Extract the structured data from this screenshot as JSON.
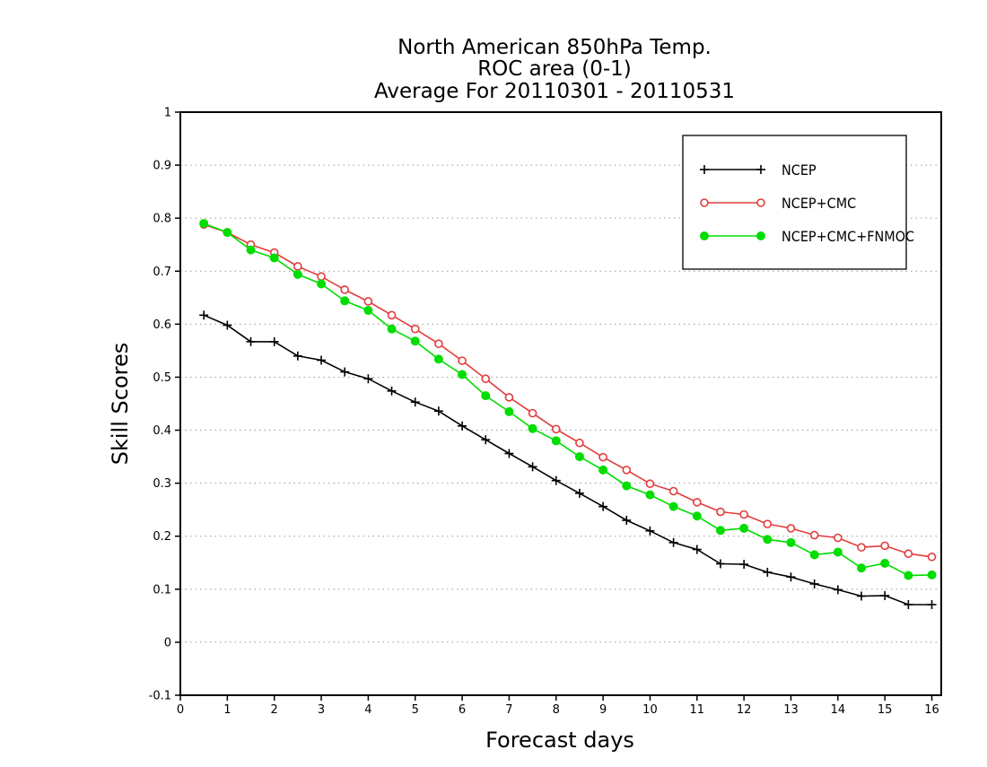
{
  "chart_data": {
    "type": "line",
    "title_lines": [
      "North American 850hPa Temp.",
      "ROC area (0-1)",
      "Average For 20110301 - 20110531"
    ],
    "xlabel": "Forecast days",
    "ylabel": "Skill Scores",
    "xlim": [
      0,
      16.2
    ],
    "ylim": [
      -0.1,
      1
    ],
    "x_ticks": [
      0,
      1,
      2,
      3,
      4,
      5,
      6,
      7,
      8,
      9,
      10,
      11,
      12,
      13,
      14,
      15,
      16
    ],
    "y_ticks": [
      -0.1,
      0,
      0.1,
      0.2,
      0.3,
      0.4,
      0.5,
      0.6,
      0.7,
      0.8,
      0.9,
      1
    ],
    "y_tick_labels": [
      "-0.1",
      "0",
      "0.1",
      "0.2",
      "0.3",
      "0.4",
      "0.5",
      "0.6",
      "0.7",
      "0.8",
      "0.9",
      "1"
    ],
    "grid": "horizontal dotted",
    "legend_position": "top-right",
    "x": [
      0.5,
      1,
      1.5,
      2,
      2.5,
      3,
      3.5,
      4,
      4.5,
      5,
      5.5,
      6,
      6.5,
      7,
      7.5,
      8,
      8.5,
      9,
      9.5,
      10,
      10.5,
      11,
      11.5,
      12,
      12.5,
      13,
      13.5,
      14,
      14.5,
      15,
      15.5,
      16
    ],
    "series": [
      {
        "name": "NCEP",
        "color": "#000000",
        "marker": "plus",
        "values": [
          0.617,
          0.598,
          0.567,
          0.567,
          0.54,
          0.532,
          0.51,
          0.497,
          0.474,
          0.453,
          0.436,
          0.408,
          0.382,
          0.356,
          0.331,
          0.305,
          0.281,
          0.256,
          0.23,
          0.21,
          0.188,
          0.175,
          0.148,
          0.147,
          0.132,
          0.123,
          0.11,
          0.099,
          0.087,
          0.088,
          0.071,
          0.071
        ]
      },
      {
        "name": "NCEP+CMC",
        "color": "#e33b3b",
        "marker": "open-circle",
        "values": [
          0.788,
          0.773,
          0.75,
          0.735,
          0.709,
          0.69,
          0.665,
          0.643,
          0.617,
          0.591,
          0.563,
          0.531,
          0.497,
          0.462,
          0.432,
          0.402,
          0.376,
          0.349,
          0.325,
          0.299,
          0.285,
          0.264,
          0.246,
          0.241,
          0.223,
          0.215,
          0.202,
          0.197,
          0.179,
          0.182,
          0.167,
          0.161
        ]
      },
      {
        "name": "NCEP+CMC+FNMOC",
        "color": "#00dd00",
        "marker": "filled-circle",
        "values": [
          0.79,
          0.773,
          0.74,
          0.725,
          0.694,
          0.676,
          0.644,
          0.626,
          0.591,
          0.568,
          0.534,
          0.505,
          0.465,
          0.435,
          0.403,
          0.38,
          0.35,
          0.325,
          0.295,
          0.278,
          0.256,
          0.238,
          0.211,
          0.215,
          0.194,
          0.188,
          0.165,
          0.17,
          0.14,
          0.149,
          0.126,
          0.127
        ]
      }
    ]
  }
}
